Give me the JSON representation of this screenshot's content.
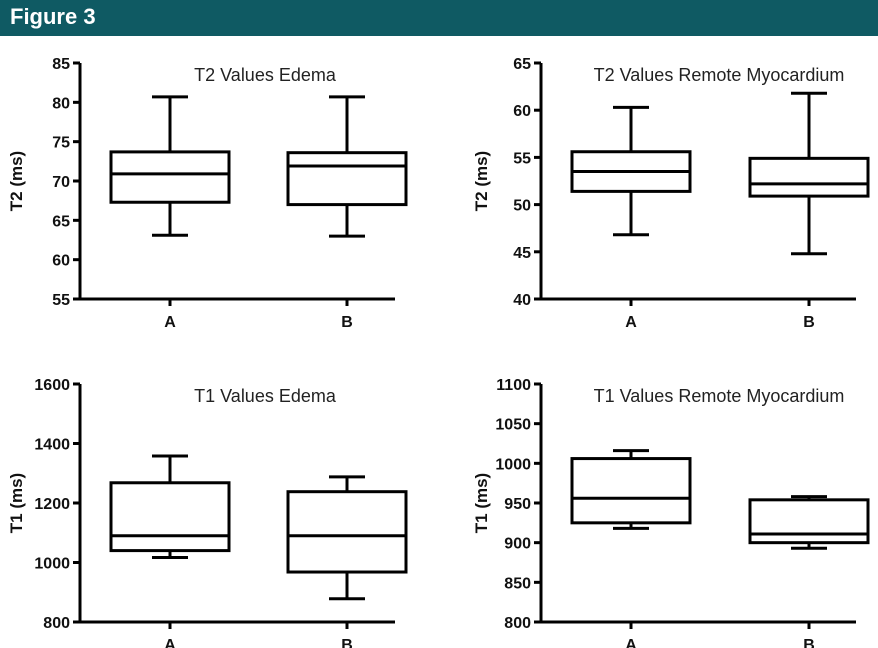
{
  "header": {
    "figure_label": "Figure 3"
  },
  "colors": {
    "header_bg": "#0f5a63",
    "header_text": "#ffffff",
    "axis": "#000000",
    "box_fill": "#ffffff"
  },
  "chart_data": [
    {
      "type": "boxplot",
      "title": "T2 Values Edema",
      "ylabel": "T2 (ms)",
      "xlabel": "",
      "ylim": [
        55,
        85
      ],
      "yticks": [
        55,
        60,
        65,
        70,
        75,
        80,
        85
      ],
      "categories": [
        "A",
        "B"
      ],
      "boxes": [
        {
          "min": 63.1,
          "q1": 67.3,
          "median": 70.9,
          "q3": 73.7,
          "max": 80.7
        },
        {
          "min": 63.0,
          "q1": 67.0,
          "median": 71.9,
          "q3": 73.6,
          "max": 80.7
        }
      ],
      "grid": false,
      "legend": "none"
    },
    {
      "type": "boxplot",
      "title": "T2 Values Remote Myocardium",
      "ylabel": "T2 (ms)",
      "xlabel": "",
      "ylim": [
        40,
        65
      ],
      "yticks": [
        40,
        45,
        50,
        55,
        60,
        65
      ],
      "categories": [
        "A",
        "B"
      ],
      "boxes": [
        {
          "min": 46.8,
          "q1": 51.4,
          "median": 53.5,
          "q3": 55.6,
          "max": 60.3
        },
        {
          "min": 44.8,
          "q1": 50.9,
          "median": 52.2,
          "q3": 54.9,
          "max": 61.8
        }
      ],
      "grid": false,
      "legend": "none"
    },
    {
      "type": "boxplot",
      "title": "T1 Values Edema",
      "ylabel": "T1 (ms)",
      "xlabel": "",
      "ylim": [
        800,
        1600
      ],
      "yticks": [
        800,
        1000,
        1200,
        1400,
        1600
      ],
      "categories": [
        "A",
        "B"
      ],
      "boxes": [
        {
          "min": 1017,
          "q1": 1040,
          "median": 1090,
          "q3": 1268,
          "max": 1358
        },
        {
          "min": 878,
          "q1": 968,
          "median": 1090,
          "q3": 1238,
          "max": 1288
        }
      ],
      "grid": false,
      "legend": "none"
    },
    {
      "type": "boxplot",
      "title": "T1 Values Remote Myocardium",
      "ylabel": "T1 (ms)",
      "xlabel": "",
      "ylim": [
        800,
        1100
      ],
      "yticks": [
        800,
        850,
        900,
        950,
        1000,
        1050,
        1100
      ],
      "categories": [
        "A",
        "B"
      ],
      "boxes": [
        {
          "min": 918,
          "q1": 925,
          "median": 956,
          "q3": 1006,
          "max": 1016
        },
        {
          "min": 893,
          "q1": 900,
          "median": 911,
          "q3": 954,
          "max": 958
        }
      ],
      "grid": false,
      "legend": "none"
    }
  ]
}
